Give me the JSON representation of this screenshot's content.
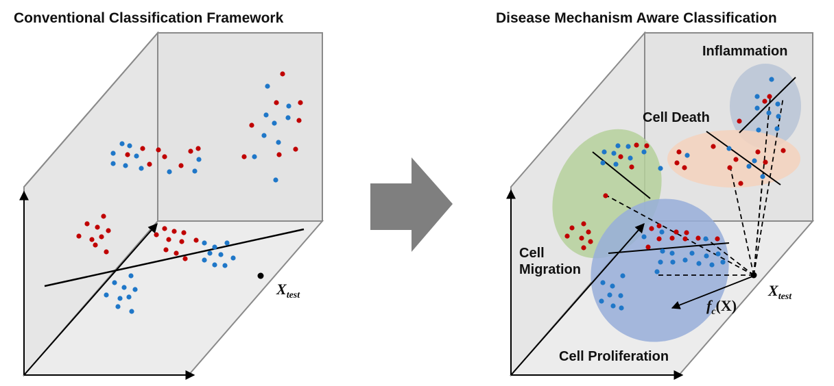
{
  "left_panel": {
    "title": "Conventional Classification Framework",
    "test_label": {
      "main": "X",
      "sub": "test"
    }
  },
  "right_panel": {
    "title": "Disease Mechanism Aware Classification",
    "mechanisms": {
      "inflammation": "Inflammation",
      "cell_death": "Cell Death",
      "cell_migration_line1": "Cell",
      "cell_migration_line2": "Migration",
      "cell_proliferation": "Cell Proliferation"
    },
    "test_label": {
      "main": "X",
      "sub": "test"
    },
    "projection_label": {
      "f": "f",
      "sub": "c",
      "arg": "(X)"
    }
  },
  "colors": {
    "class_red": "#c00000",
    "class_blue": "#1f77c8",
    "panel_fill": "#e9e9e9",
    "arrow_fill": "#7f7f7f",
    "inflammation_fill": "#b8c4d6",
    "cell_death_fill": "#f4d2bd",
    "cell_migration_fill": "#b5d09b",
    "cell_proliferation_fill": "#98aed9"
  }
}
